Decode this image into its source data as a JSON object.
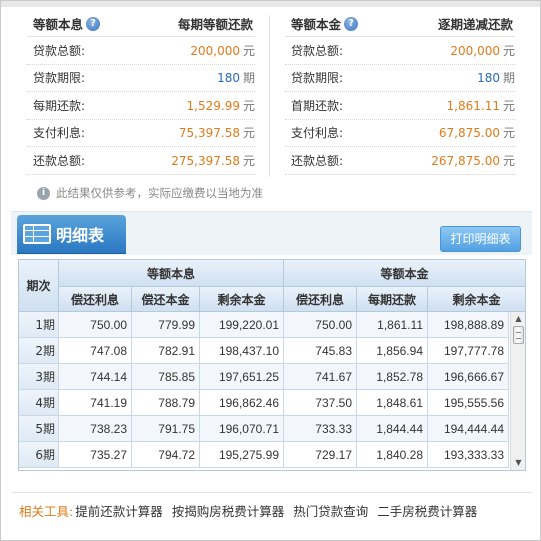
{
  "equal_interest": {
    "title": "等额本息",
    "mode": "每期等额还款",
    "rows": [
      {
        "label": "贷款总额:",
        "value": "200,000",
        "unit": "元"
      },
      {
        "label": "贷款期限:",
        "value": "180",
        "unit": "期"
      },
      {
        "label": "每期还款:",
        "value": "1,529.99",
        "unit": "元"
      },
      {
        "label": "支付利息:",
        "value": "75,397.58",
        "unit": "元"
      },
      {
        "label": "还款总额:",
        "value": "275,397.58",
        "unit": "元"
      }
    ]
  },
  "equal_principal": {
    "title": "等额本金",
    "mode": "逐期递减还款",
    "rows": [
      {
        "label": "贷款总额:",
        "value": "200,000",
        "unit": "元"
      },
      {
        "label": "贷款期限:",
        "value": "180",
        "unit": "期"
      },
      {
        "label": "首期还款:",
        "value": "1,861.11",
        "unit": "元"
      },
      {
        "label": "支付利息:",
        "value": "67,875.00",
        "unit": "元"
      },
      {
        "label": "还款总额:",
        "value": "267,875.00",
        "unit": "元"
      }
    ]
  },
  "note": "此结果仅供参考，实际应缴费以当地为准",
  "detail": {
    "title": "明细表",
    "print_button": "打印明细表"
  },
  "table": {
    "period_header": "期次",
    "group1": "等额本息",
    "group2": "等额本金",
    "subheaders": [
      "偿还利息",
      "偿还本金",
      "剩余本金",
      "偿还利息",
      "每期还款",
      "剩余本金"
    ],
    "rows": [
      [
        "1期",
        "750.00",
        "779.99",
        "199,220.01",
        "750.00",
        "1,861.11",
        "198,888.89"
      ],
      [
        "2期",
        "747.08",
        "782.91",
        "198,437.10",
        "745.83",
        "1,856.94",
        "197,777.78"
      ],
      [
        "3期",
        "744.14",
        "785.85",
        "197,651.25",
        "741.67",
        "1,852.78",
        "196,666.67"
      ],
      [
        "4期",
        "741.19",
        "788.79",
        "196,862.46",
        "737.50",
        "1,848.61",
        "195,555.56"
      ],
      [
        "5期",
        "738.23",
        "791.75",
        "196,070.71",
        "733.33",
        "1,844.44",
        "194,444.44"
      ],
      [
        "6期",
        "735.27",
        "794.72",
        "195,275.99",
        "729.17",
        "1,840.28",
        "193,333.33"
      ]
    ]
  },
  "footer": {
    "label": "相关工具:",
    "tools": [
      "提前还款计算器",
      "按揭购房税费计算器",
      "热门贷款查询",
      "二手房税费计算器"
    ]
  },
  "colors": {
    "value_orange": "#e07b1a",
    "value_blue": "#2a6ab8",
    "tab_blue": "#2a78c2"
  }
}
